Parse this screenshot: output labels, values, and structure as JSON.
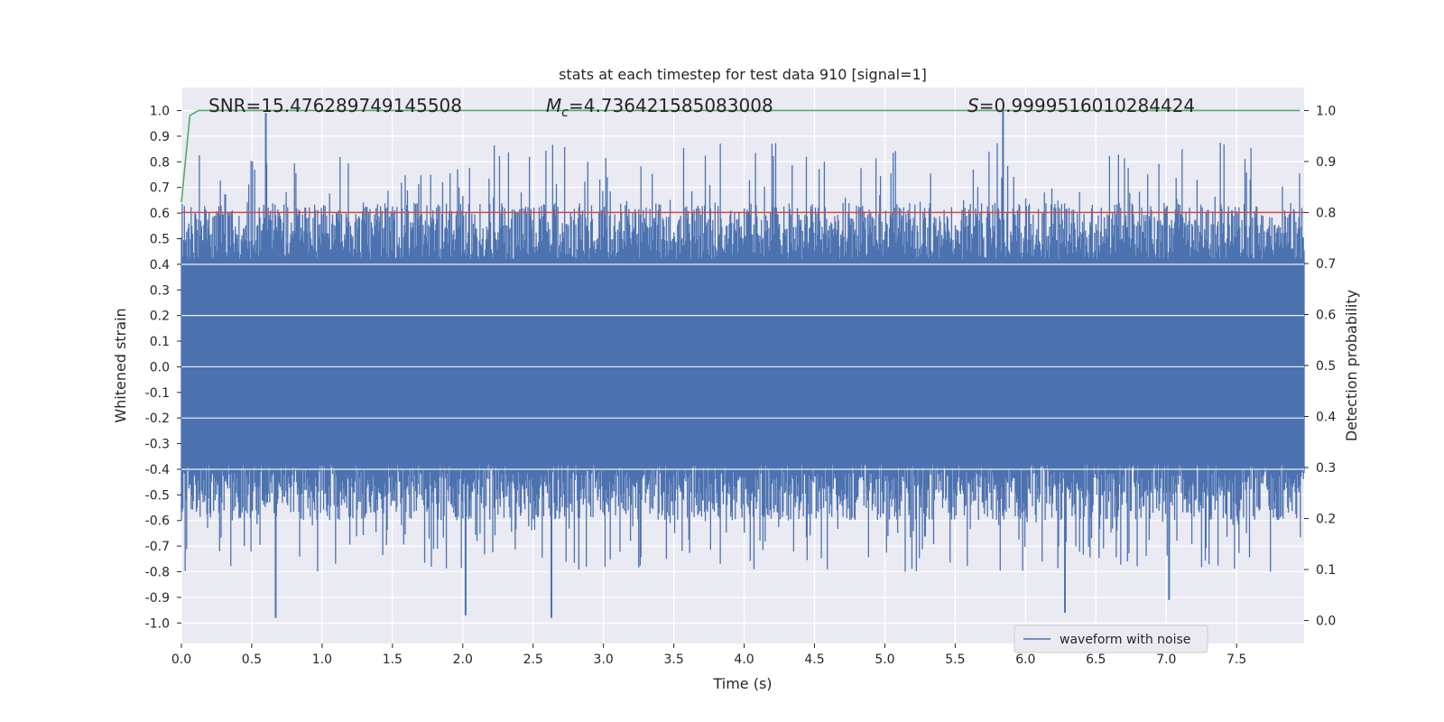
{
  "chart_data": {
    "type": "line",
    "title": "stats at each timestep for test data 910 [signal=1]",
    "xlabel": "Time (s)",
    "ylabel": "Whitened strain",
    "y2label": "Detection probability",
    "xlim": [
      0.0,
      7.98
    ],
    "ylim": [
      -1.08,
      1.09
    ],
    "y2lim": [
      -0.045,
      1.045
    ],
    "x_ticks": [
      "0.0",
      "0.5",
      "1.0",
      "1.5",
      "2.0",
      "2.5",
      "3.0",
      "3.5",
      "4.0",
      "4.5",
      "5.0",
      "5.5",
      "6.0",
      "6.5",
      "7.0",
      "7.5"
    ],
    "y_ticks": [
      "1.0",
      "0.9",
      "0.8",
      "0.7",
      "0.6",
      "0.5",
      "0.4",
      "0.3",
      "0.2",
      "0.1",
      "0.0",
      "-0.1",
      "-0.2",
      "-0.3",
      "-0.4",
      "-0.5",
      "-0.6",
      "-0.7",
      "-0.8",
      "-0.9",
      "-1.0"
    ],
    "y2_ticks": [
      "1.0",
      "0.9",
      "0.8",
      "0.7",
      "0.6",
      "0.5",
      "0.4",
      "0.3",
      "0.2",
      "0.1",
      "0.0"
    ],
    "annotations": {
      "snr": "SNR=15.476289749145508",
      "mc_symbol": "M",
      "mc_sub": "c",
      "mc_value": "=4.736421585083008",
      "s_symbol": "S",
      "s_value": "=0.9999516010284424"
    },
    "threshold": {
      "axis": "right",
      "value": 0.8,
      "color": "#c44e52"
    },
    "series": [
      {
        "name": "waveform with noise",
        "axis": "left",
        "color": "#4c72b0",
        "kind": "dense-noise",
        "core_range": [
          -0.38,
          0.41
        ],
        "peak_max": 0.99,
        "peak_min": -0.98,
        "highlighted_peaks": [
          {
            "x": 0.6,
            "y": 0.99
          },
          {
            "x": 5.84,
            "y": 1.0
          },
          {
            "x": 0.67,
            "y": -0.98
          },
          {
            "x": 2.02,
            "y": -0.97
          },
          {
            "x": 2.63,
            "y": -0.98
          },
          {
            "x": 6.28,
            "y": -0.96
          },
          {
            "x": 7.02,
            "y": -0.91
          }
        ]
      },
      {
        "name": "detection probability",
        "axis": "right",
        "color": "#55a868",
        "x": [
          0.0,
          0.06,
          0.12,
          7.95
        ],
        "y": [
          0.82,
          0.99,
          1.0,
          1.0
        ]
      }
    ],
    "legend": {
      "position": "bottom-right",
      "entries": [
        "waveform with noise"
      ]
    }
  }
}
